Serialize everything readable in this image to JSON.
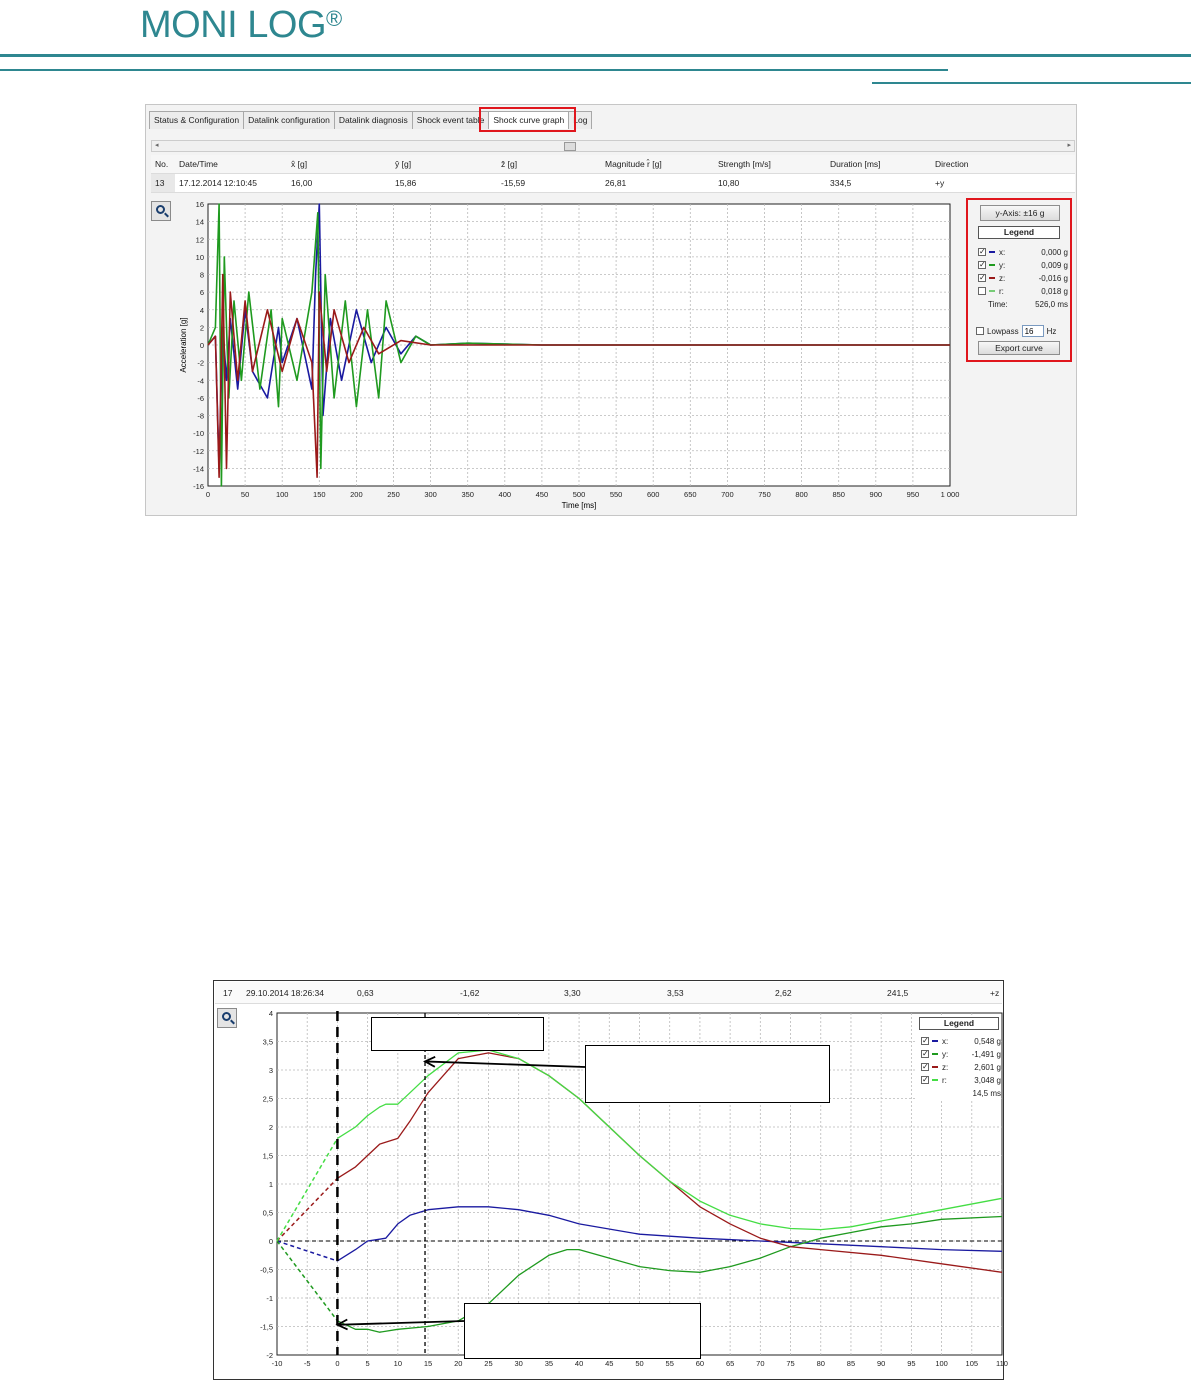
{
  "header": {
    "logo_text": "MONI LOG",
    "logo_mark": "®",
    "brand_color": "#2e8790"
  },
  "app1": {
    "tabs": [
      {
        "label": "Status & Configuration"
      },
      {
        "label": "Datalink configuration"
      },
      {
        "label": "Datalink diagnosis"
      },
      {
        "label": "Shock event table"
      },
      {
        "label": "Shock curve graph"
      },
      {
        "label": "Log"
      }
    ],
    "active_tab": "Shock curve graph",
    "table": {
      "headers": [
        "No.",
        "Date/Time",
        "x̂ [g]",
        "ŷ [g]",
        "ẑ [g]",
        "Magnitude r̂ [g]",
        "Strength [m/s]",
        "Duration [ms]",
        "Direction"
      ],
      "row": [
        "13",
        "17.12.2014 12:10:45",
        "16,00",
        "15,86",
        "-15,59",
        "26,81",
        "10,80",
        "334,5",
        "+y"
      ]
    },
    "controls": {
      "y_axis_button": "y-Axis: ±16 g",
      "legend_title": "Legend",
      "legend": [
        {
          "name": "x:",
          "value": "0,000 g",
          "checked": true,
          "color": "#1a1aa0"
        },
        {
          "name": "y:",
          "value": "0,009 g",
          "checked": true,
          "color": "#1f9a1f"
        },
        {
          "name": "z:",
          "value": "-0,016 g",
          "checked": true,
          "color": "#9a1a1a"
        },
        {
          "name": "r:",
          "value": "0,018 g",
          "checked": false,
          "color": "#77cc77"
        }
      ],
      "time_label": "Time:",
      "time_value": "526,0 ms",
      "lowpass_label": "Lowpass",
      "lowpass_value": "16",
      "lowpass_unit": "Hz",
      "export_button": "Export curve"
    }
  },
  "app2": {
    "row": [
      "17",
      "29.10.2014 18:26:34",
      "0,63",
      "-1,62",
      "3,30",
      "3,53",
      "2,62",
      "241,5",
      "+z"
    ],
    "legend_title": "Legend",
    "legend": [
      {
        "name": "x:",
        "value": "0,548 g",
        "color": "#1a1aa0"
      },
      {
        "name": "y:",
        "value": "-1,491 g",
        "color": "#1f9a1f"
      },
      {
        "name": "z:",
        "value": "2,601 g",
        "color": "#9a1a1a"
      },
      {
        "name": "r:",
        "value": "3,048 g",
        "color": "#44dd44"
      }
    ],
    "time_value": "14,5 ms"
  },
  "chart_data": [
    {
      "type": "line",
      "xlabel": "Time [ms]",
      "ylabel": "Acceleration [g]",
      "xlim": [
        0,
        1000
      ],
      "ylim": [
        -16,
        16
      ],
      "xticks": [
        "0",
        "50",
        "100",
        "150",
        "200",
        "250",
        "300",
        "350",
        "400",
        "450",
        "500",
        "550",
        "600",
        "650",
        "700",
        "750",
        "800",
        "850",
        "900",
        "950",
        "1 000"
      ],
      "yticks": [
        "16",
        "14",
        "12",
        "10",
        "8",
        "6",
        "4",
        "2",
        "0",
        "-2",
        "-4",
        "-6",
        "-8",
        "-10",
        "-12",
        "-14",
        "-16"
      ],
      "grid": true,
      "series": [
        {
          "color": "#1a1aa0",
          "x": [
            0,
            10,
            15,
            20,
            25,
            30,
            40,
            50,
            60,
            80,
            95,
            100,
            120,
            140,
            145,
            150,
            155,
            165,
            180,
            200,
            220,
            240,
            260,
            280,
            300,
            350,
            450,
            1000
          ],
          "y": [
            0,
            1,
            -14,
            2,
            -4,
            3,
            -5,
            4,
            -3,
            -6,
            2,
            -2,
            3,
            -5,
            8,
            16,
            -8,
            3,
            -4,
            4,
            -2,
            2,
            -1,
            1,
            0,
            0.2,
            0,
            0
          ]
        },
        {
          "color": "#1f9a1f",
          "x": [
            0,
            10,
            15,
            18,
            22,
            28,
            35,
            45,
            55,
            70,
            85,
            95,
            100,
            120,
            140,
            148,
            152,
            158,
            170,
            185,
            200,
            215,
            230,
            240,
            260,
            280,
            300,
            350,
            450,
            1000
          ],
          "y": [
            0,
            2,
            16,
            -16,
            10,
            -6,
            5,
            -4,
            6,
            -5,
            4,
            -7,
            3,
            -4,
            6,
            15,
            -14,
            8,
            -6,
            5,
            -7,
            4,
            -6,
            5,
            -2,
            1,
            0,
            0.2,
            0,
            0
          ]
        },
        {
          "color": "#9a1a1a",
          "x": [
            0,
            10,
            15,
            20,
            25,
            30,
            40,
            50,
            60,
            80,
            100,
            120,
            140,
            147,
            150,
            160,
            170,
            190,
            210,
            230,
            260,
            300,
            450,
            1000
          ],
          "y": [
            0,
            1,
            -15,
            8,
            -14,
            6,
            -4,
            5,
            -3,
            4,
            -3,
            3,
            -2,
            -15,
            6,
            -3,
            4,
            -2,
            2,
            -1,
            0.5,
            0,
            0,
            0
          ]
        }
      ]
    },
    {
      "type": "line",
      "xlim": [
        -10,
        110
      ],
      "ylim": [
        -2,
        4
      ],
      "xticks": [
        "-10",
        "-5",
        "0",
        "5",
        "10",
        "15",
        "20",
        "25",
        "30",
        "35",
        "40",
        "45",
        "50",
        "55",
        "60",
        "65",
        "70",
        "75",
        "80",
        "85",
        "90",
        "95",
        "100",
        "105",
        "110"
      ],
      "yticks": [
        "4",
        "3,5",
        "3",
        "2,5",
        "2",
        "1,5",
        "1",
        "0,5",
        "0",
        "-0,5",
        "-1",
        "-1,5",
        "-2"
      ],
      "grid": true,
      "series": [
        {
          "color": "#1a1aa0",
          "x": [
            0,
            3,
            5,
            8,
            10,
            12,
            15,
            20,
            25,
            30,
            35,
            40,
            50,
            60,
            70,
            80,
            90,
            100,
            110
          ],
          "y": [
            -0.35,
            -0.15,
            0,
            0.05,
            0.3,
            0.45,
            0.55,
            0.6,
            0.6,
            0.55,
            0.45,
            0.3,
            0.12,
            0.05,
            0,
            -0.05,
            -0.1,
            -0.15,
            -0.18
          ]
        },
        {
          "color": "#1f9a1f",
          "x": [
            0,
            3,
            5,
            7,
            10,
            15,
            20,
            25,
            30,
            35,
            38,
            40,
            45,
            50,
            55,
            60,
            65,
            70,
            75,
            80,
            85,
            90,
            95,
            100,
            110
          ],
          "y": [
            -1.4,
            -1.55,
            -1.55,
            -1.6,
            -1.55,
            -1.5,
            -1.4,
            -1.1,
            -0.6,
            -0.25,
            -0.15,
            -0.15,
            -0.3,
            -0.45,
            -0.52,
            -0.55,
            -0.45,
            -0.3,
            -0.1,
            0.05,
            0.15,
            0.25,
            0.3,
            0.38,
            0.43
          ]
        },
        {
          "color": "#9a1a1a",
          "x": [
            0,
            3,
            5,
            7,
            10,
            12,
            15,
            20,
            25,
            30,
            35,
            40,
            45,
            50,
            55,
            60,
            65,
            70,
            75,
            80,
            90,
            100,
            110
          ],
          "y": [
            1.1,
            1.3,
            1.5,
            1.7,
            1.8,
            2.1,
            2.6,
            3.2,
            3.3,
            3.2,
            2.9,
            2.5,
            2.0,
            1.5,
            1.05,
            0.6,
            0.3,
            0.05,
            -0.1,
            -0.15,
            -0.25,
            -0.4,
            -0.55
          ]
        },
        {
          "color": "#44dd44",
          "x": [
            0,
            3,
            5,
            7,
            8,
            10,
            12,
            15,
            20,
            25,
            30,
            35,
            40,
            45,
            50,
            55,
            60,
            65,
            70,
            75,
            80,
            85,
            90,
            100,
            110
          ],
          "y": [
            1.8,
            2.0,
            2.2,
            2.35,
            2.4,
            2.4,
            2.6,
            2.9,
            3.3,
            3.35,
            3.2,
            2.9,
            2.5,
            2.0,
            1.5,
            1.05,
            0.7,
            0.45,
            0.3,
            0.22,
            0.2,
            0.25,
            0.35,
            0.55,
            0.75
          ]
        }
      ],
      "extrapolated_from_origin": true
    }
  ]
}
